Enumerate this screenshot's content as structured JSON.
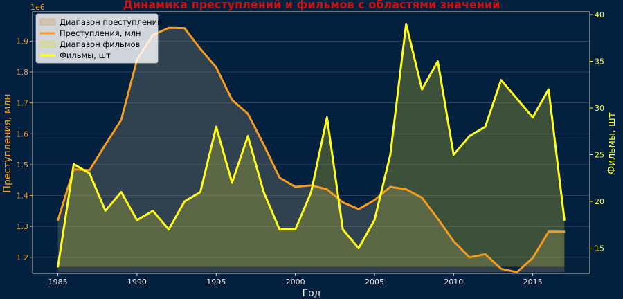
{
  "chart_data": {
    "type": "line",
    "title": "Динамика преступлений и фильмов с областями значений",
    "xlabel": "Год",
    "ylabel_left": "Преступления, млн",
    "ylabel_right": "Фильмы, шт",
    "offset_label": "1e6",
    "x": [
      1985,
      1986,
      1987,
      1988,
      1989,
      1990,
      1991,
      1992,
      1993,
      1994,
      1995,
      1996,
      1997,
      1998,
      1999,
      2000,
      2001,
      2002,
      2003,
      2004,
      2005,
      2006,
      2007,
      2008,
      2009,
      2010,
      2011,
      2012,
      2013,
      2014,
      2015,
      2016,
      2017
    ],
    "series": [
      {
        "name": "Преступления, млн",
        "axis": "left",
        "color": "#f39c1f",
        "values": [
          1.32,
          1.485,
          1.482,
          1.565,
          1.645,
          1.84,
          1.92,
          1.943,
          1.942,
          1.875,
          1.815,
          1.71,
          1.665,
          1.565,
          1.458,
          1.428,
          1.433,
          1.42,
          1.378,
          1.356,
          1.385,
          1.428,
          1.42,
          1.393,
          1.325,
          1.252,
          1.2,
          1.21,
          1.163,
          1.152,
          1.198,
          1.283,
          1.283
        ]
      },
      {
        "name": "Фильмы, шт",
        "axis": "right",
        "color": "#ffff1a",
        "values": [
          13,
          24,
          23,
          19,
          21,
          18,
          19,
          17,
          20,
          21,
          28,
          22,
          27,
          21,
          17,
          17,
          21,
          29,
          17,
          15,
          18,
          25,
          39,
          32,
          35,
          25,
          27,
          28,
          33,
          31,
          29,
          32,
          18
        ]
      }
    ],
    "legend": [
      {
        "label": "Диапазон преступлений",
        "kind": "area",
        "color": "#d3b48c"
      },
      {
        "label": "Преступления, млн",
        "kind": "line",
        "color": "#f39c1f"
      },
      {
        "label": "Диапазон фильмов",
        "kind": "area",
        "color": "#d8d87a"
      },
      {
        "label": "Фильмы, шт",
        "kind": "line",
        "color": "#ffff1a"
      }
    ],
    "legend_position": "top-left",
    "xlim": [
      1983.4,
      2018.6
    ],
    "ylim_left": [
      1.148,
      1.995
    ],
    "ylim_right": [
      12.3,
      40.3
    ],
    "xticks": [
      1985,
      1990,
      1995,
      2000,
      2005,
      2010,
      2015
    ],
    "yticks_left": [
      1.2,
      1.3,
      1.4,
      1.5,
      1.6,
      1.7,
      1.8,
      1.9
    ],
    "yticks_right": [
      15,
      20,
      25,
      30,
      35,
      40
    ],
    "grid": true,
    "colors": {
      "background": "#03203f",
      "left_axis": "#f39c1f",
      "right_axis": "#ffff1a",
      "title": "#cc1111",
      "xlabel": "#e8e8e8",
      "spine": "#c8c8c8"
    }
  }
}
